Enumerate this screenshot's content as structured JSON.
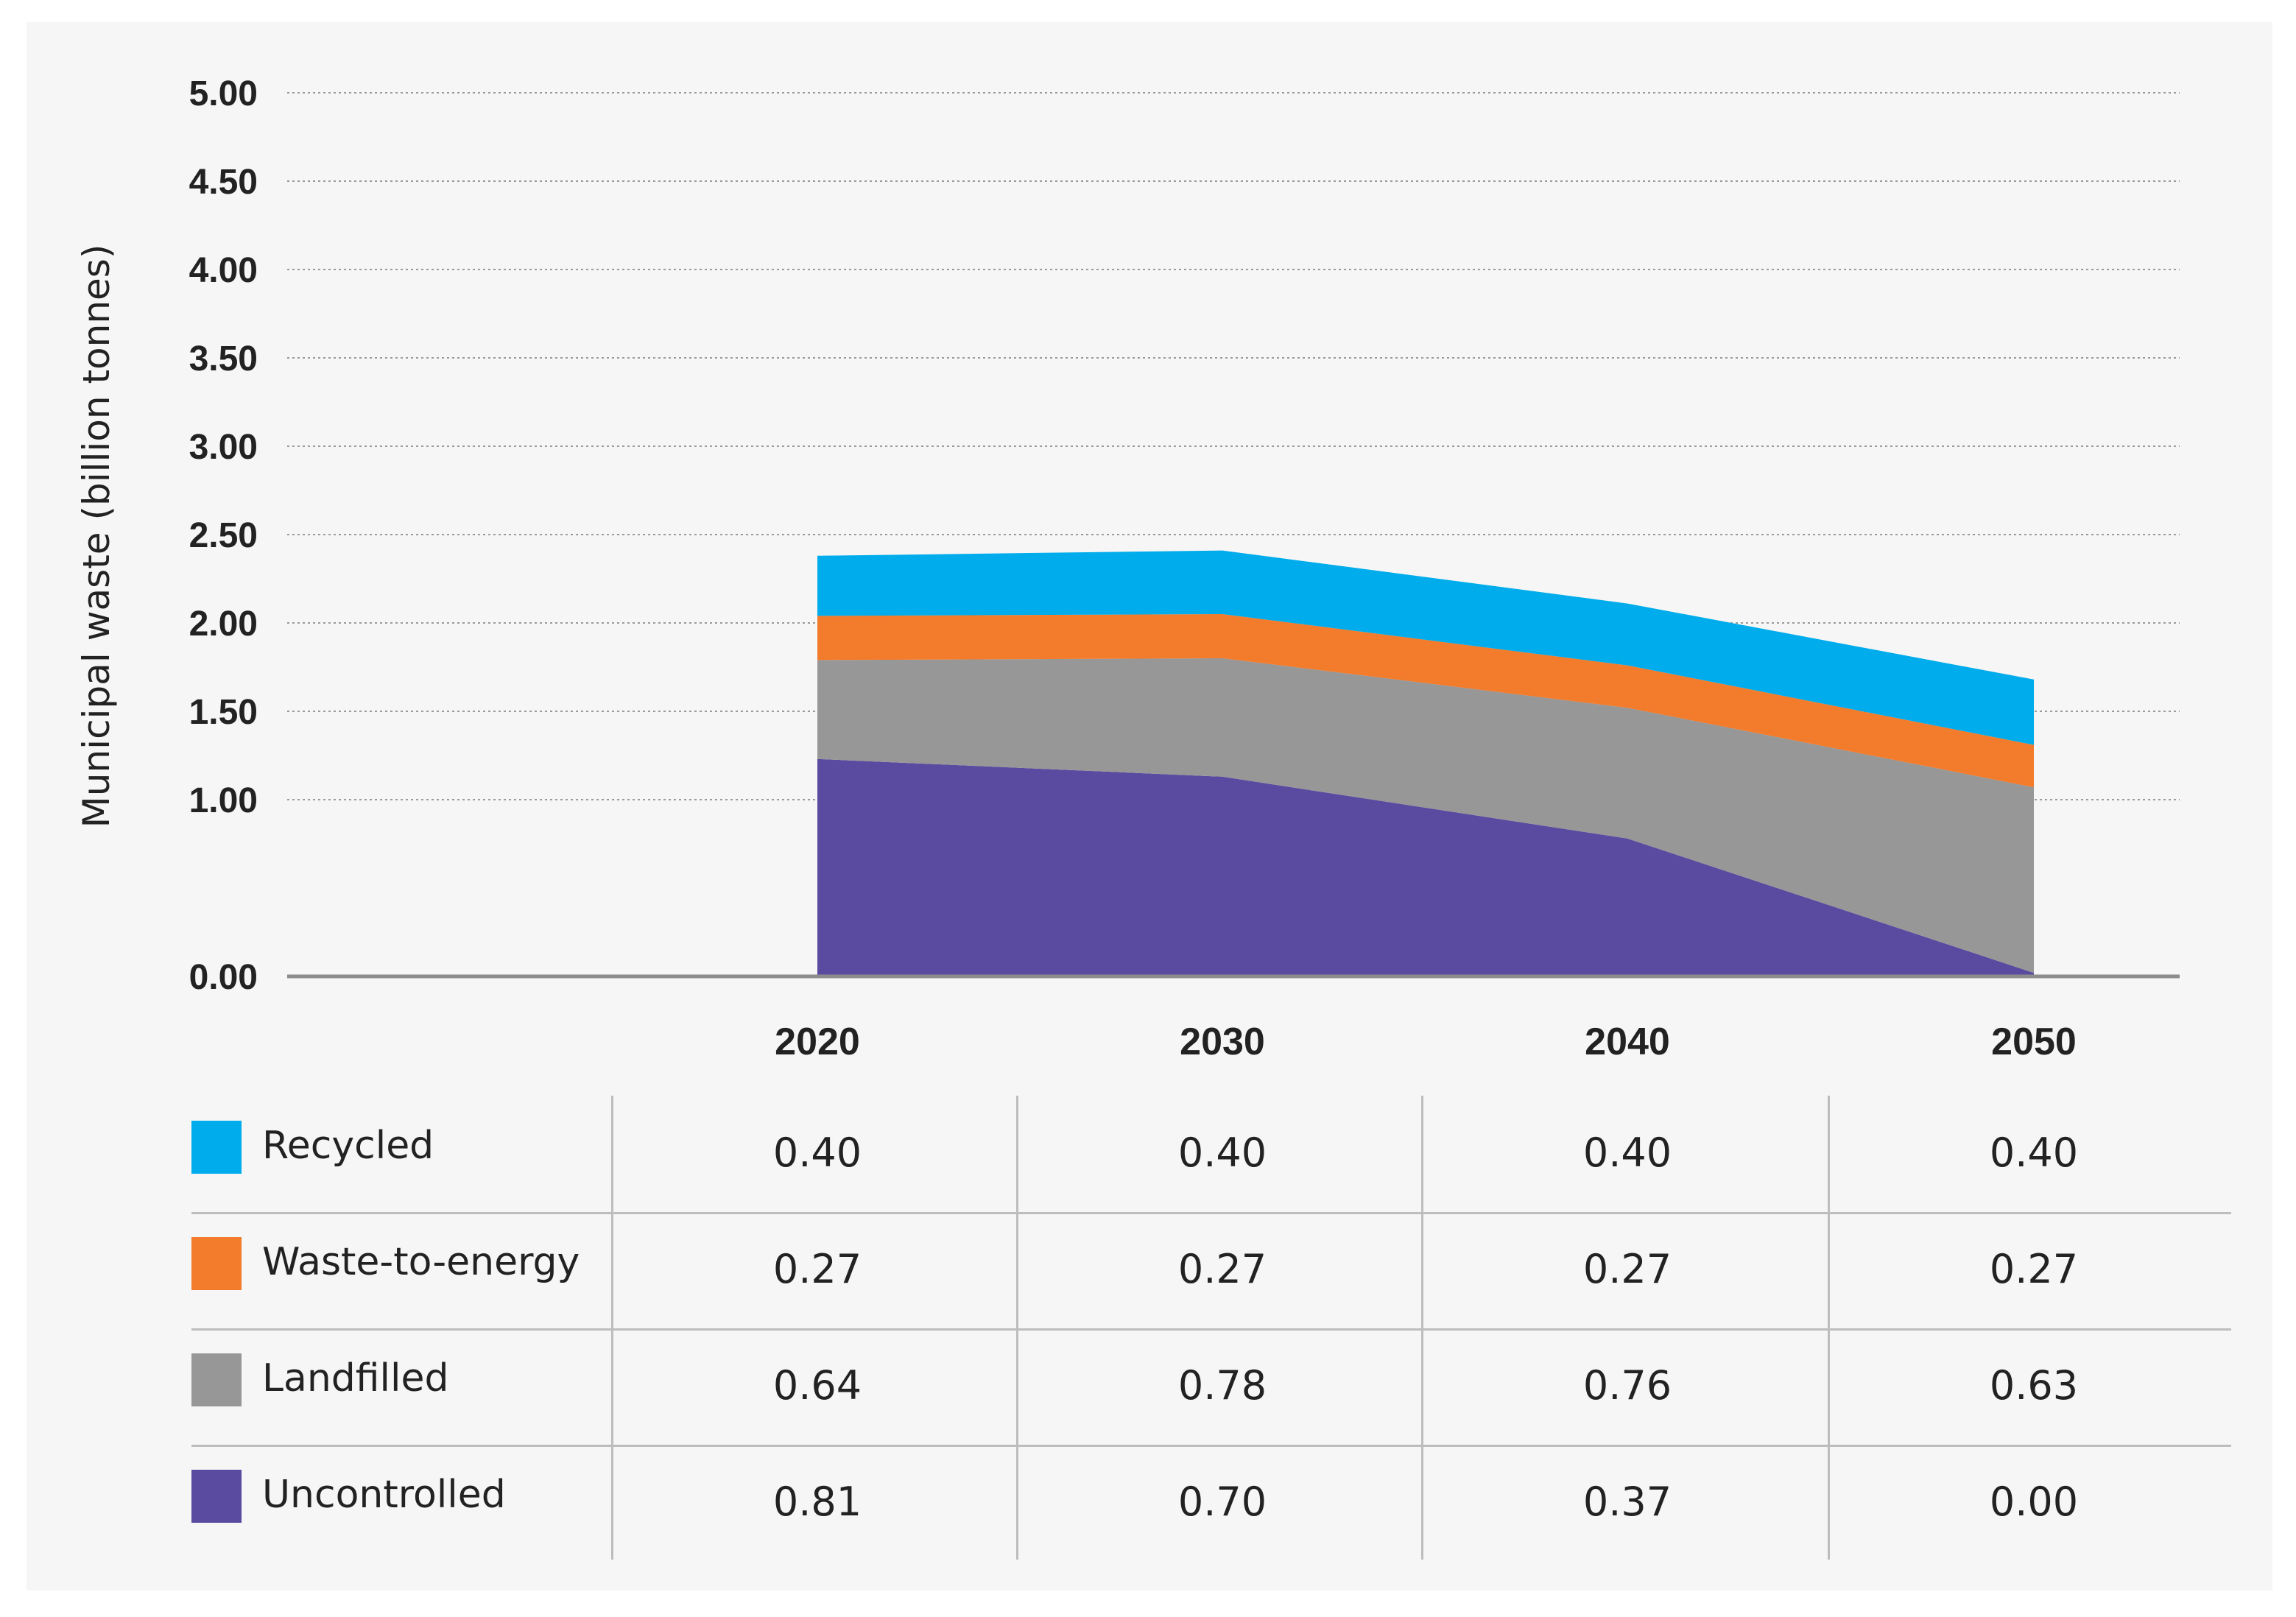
{
  "chart_data": {
    "type": "area",
    "ylabel": "Municipal waste (billion tonnes)",
    "xlabel": "",
    "ylim": [
      0,
      5
    ],
    "yticks": [
      "5.00",
      "4.50",
      "4.00",
      "3.50",
      "3.00",
      "2.50",
      "2.00",
      "1.50",
      "1.00",
      "0.00"
    ],
    "categories": [
      "2020",
      "2030",
      "2040",
      "2050"
    ],
    "grid": true,
    "stacked": true,
    "series": [
      {
        "name": "Uncontrolled",
        "color": "#5a4aa0",
        "values": [
          1.23,
          1.13,
          0.78,
          0.02
        ]
      },
      {
        "name": "Landfilled",
        "color": "#979797",
        "values": [
          0.56,
          0.67,
          0.74,
          1.05
        ]
      },
      {
        "name": "Waste-to-energy",
        "color": "#f27b2c",
        "values": [
          0.25,
          0.25,
          0.24,
          0.24
        ]
      },
      {
        "name": "Recycled",
        "color": "#00aceb",
        "values": [
          0.34,
          0.36,
          0.35,
          0.37
        ]
      }
    ]
  },
  "table": {
    "rows": [
      {
        "label": "Recycled",
        "color": "#00aceb",
        "values": [
          "0.40",
          "0.40",
          "0.40",
          "0.40"
        ]
      },
      {
        "label": "Waste-to-energy",
        "color": "#f27b2c",
        "values": [
          "0.27",
          "0.27",
          "0.27",
          "0.27"
        ]
      },
      {
        "label": "Landfilled",
        "color": "#979797",
        "values": [
          "0.64",
          "0.78",
          "0.76",
          "0.63"
        ]
      },
      {
        "label": "Uncontrolled",
        "color": "#5a4aa0",
        "values": [
          "0.81",
          "0.70",
          "0.37",
          "0.00"
        ]
      }
    ]
  }
}
